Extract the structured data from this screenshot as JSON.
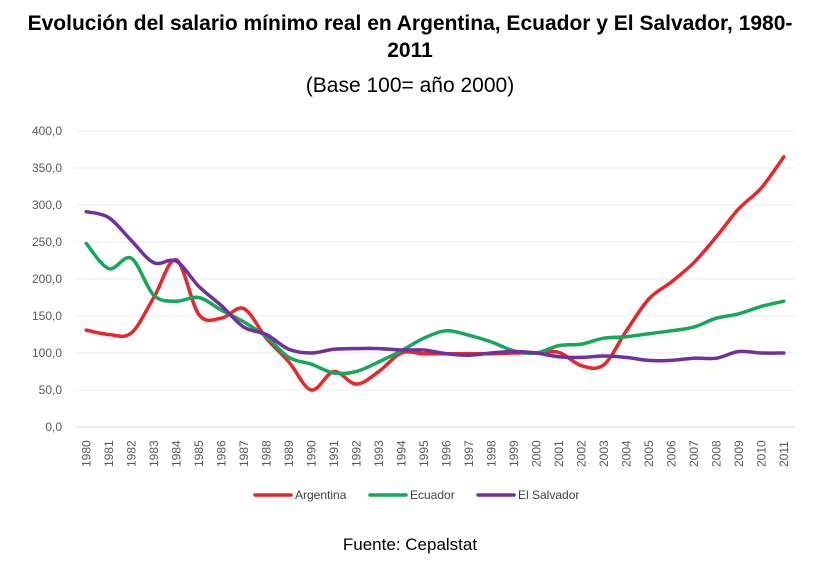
{
  "chart_data": {
    "type": "line",
    "title": "Evolución del salario mínimo real en Argentina, Ecuador y El Salvador, 1980-2011",
    "subtitle": "(Base 100= año 2000)",
    "source": "Fuente: Cepalstat",
    "xlabel": "",
    "ylabel": "",
    "ylim": [
      0,
      400
    ],
    "yticks": [
      "0,0",
      "50,0",
      "100,0",
      "150,0",
      "200,0",
      "250,0",
      "300,0",
      "350,0",
      "400,0"
    ],
    "grid": true,
    "legend_position": "bottom",
    "categories": [
      "1980",
      "1981",
      "1982",
      "1983",
      "1984",
      "1985",
      "1986",
      "1987",
      "1988",
      "1989",
      "1990",
      "1991",
      "1992",
      "1993",
      "1994",
      "1995",
      "1996",
      "1997",
      "1998",
      "1999",
      "2000",
      "2001",
      "2002",
      "2003",
      "2004",
      "2005",
      "2006",
      "2007",
      "2008",
      "2009",
      "2010",
      "2011"
    ],
    "series": [
      {
        "name": "Argentina",
        "color": "#e8262b",
        "values": [
          131,
          125,
          127,
          175,
          226,
          152,
          147,
          160,
          120,
          88,
          50,
          75,
          58,
          75,
          100,
          99,
          99,
          99,
          99,
          100,
          100,
          101,
          83,
          84,
          130,
          173,
          196,
          222,
          257,
          295,
          323,
          365
        ]
      },
      {
        "name": "Ecuador",
        "color": "#16a85a",
        "values": [
          248,
          214,
          228,
          178,
          170,
          175,
          158,
          142,
          122,
          94,
          85,
          73,
          75,
          88,
          103,
          120,
          130,
          124,
          115,
          103,
          100,
          110,
          112,
          120,
          122,
          126,
          130,
          135,
          147,
          153,
          163,
          170
        ]
      },
      {
        "name": "El Salvador",
        "color": "#7030a0",
        "values": [
          291,
          283,
          252,
          222,
          224,
          190,
          164,
          135,
          125,
          105,
          100,
          105,
          106,
          106,
          104,
          104,
          99,
          97,
          100,
          102,
          100,
          95,
          94,
          96,
          94,
          90,
          90,
          93,
          93,
          102,
          100,
          100
        ]
      }
    ]
  }
}
